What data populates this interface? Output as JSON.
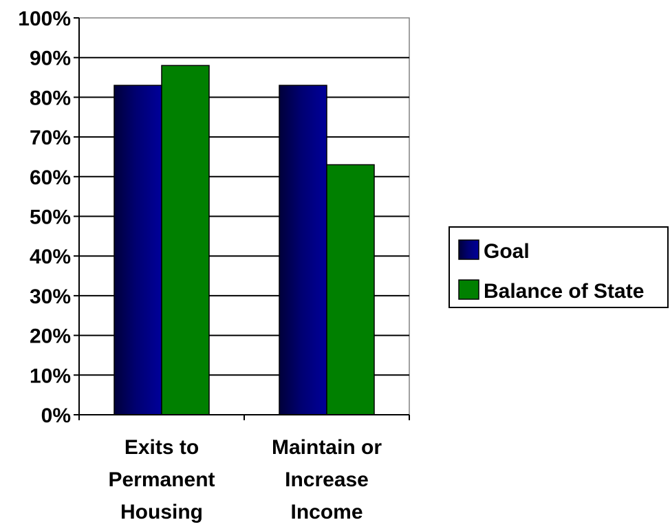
{
  "chart_data": {
    "type": "bar",
    "categories": [
      [
        "Exits to",
        "Permanent",
        "Housing"
      ],
      [
        "Maintain or",
        "Increase",
        "Income"
      ]
    ],
    "series": [
      {
        "name": "Goal",
        "values": [
          83,
          83
        ],
        "color": "#000080"
      },
      {
        "name": "Balance of State",
        "values": [
          88,
          63
        ],
        "color": "#008000"
      }
    ],
    "y_ticks": [
      "0%",
      "10%",
      "20%",
      "30%",
      "40%",
      "50%",
      "60%",
      "70%",
      "80%",
      "90%",
      "100%"
    ],
    "ylim": [
      0,
      100
    ],
    "grid": true,
    "legend_position": "right"
  }
}
